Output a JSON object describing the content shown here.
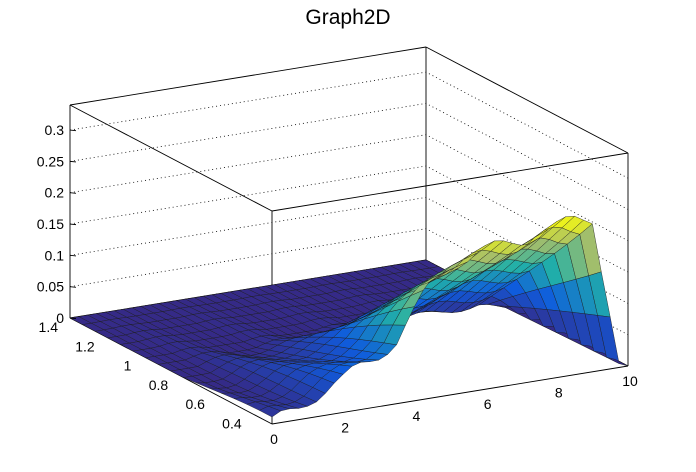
{
  "chart_data": {
    "type": "surface3d",
    "title": "Graph2D",
    "xlabel": "",
    "ylabel": "",
    "zlabel": "",
    "xlim": [
      0,
      10
    ],
    "ylim": [
      0.3,
      1.4
    ],
    "zlim": [
      0,
      0.34
    ],
    "x_ticks": [
      "0",
      "2",
      "4",
      "6",
      "8",
      "10"
    ],
    "y_ticks": [
      "0.4",
      "0.6",
      "0.8",
      "1",
      "1.2",
      "1.4"
    ],
    "z_ticks": [
      "0",
      "0.05",
      "0.1",
      "0.15",
      "0.2",
      "0.25",
      "0.3"
    ],
    "grid": true,
    "colormap": "viridis-like",
    "colors": {
      "low": "#352a87",
      "mid": "#21b0a8",
      "high": "#f9fb0e",
      "mesh": "#1a1a1a",
      "frame": "#000000"
    },
    "surface_profile": {
      "description_x": "x in data units along the front (y = 0.3) edge",
      "x": [
        0,
        1.0,
        2.0,
        2.5,
        3.0,
        3.5,
        4.0,
        4.5,
        5.0,
        5.5,
        6.0,
        6.5,
        7.0,
        7.5,
        8.0,
        8.5,
        9.0
      ],
      "z": [
        0.0,
        0.03,
        0.05,
        0.07,
        0.085,
        0.1,
        0.14,
        0.185,
        0.21,
        0.215,
        0.22,
        0.225,
        0.23,
        0.235,
        0.24,
        0.245,
        0.245
      ]
    }
  }
}
